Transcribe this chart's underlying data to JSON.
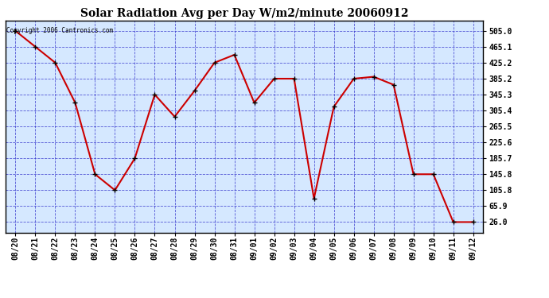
{
  "title": "Solar Radiation Avg per Day W/m2/minute 20060912",
  "copyright": "Copyright 2006 Cantronics.com",
  "x_labels": [
    "08/20",
    "08/21",
    "08/22",
    "08/23",
    "08/24",
    "08/25",
    "08/26",
    "08/27",
    "08/28",
    "08/29",
    "08/30",
    "08/31",
    "09/01",
    "09/02",
    "09/03",
    "09/04",
    "09/05",
    "09/06",
    "09/07",
    "09/08",
    "09/09",
    "09/10",
    "09/11",
    "09/12"
  ],
  "y_values": [
    505.0,
    465.1,
    425.2,
    325.0,
    145.8,
    105.8,
    185.7,
    345.3,
    290.0,
    355.0,
    425.2,
    445.0,
    325.0,
    385.2,
    385.2,
    85.0,
    315.0,
    385.2,
    390.0,
    370.0,
    145.8,
    145.8,
    26.0,
    26.0
  ],
  "line_color": "#cc0000",
  "marker_color": "#cc0000",
  "fig_bg_color": "#ffffff",
  "plot_bg_color": "#d5e8ff",
  "grid_color": "#3333cc",
  "yticks": [
    26.0,
    65.9,
    105.8,
    145.8,
    185.7,
    225.6,
    265.5,
    305.4,
    345.3,
    385.2,
    425.2,
    465.1,
    505.0
  ],
  "ylim_min": 0,
  "ylim_max": 530,
  "title_fontsize": 10,
  "tick_fontsize": 7
}
